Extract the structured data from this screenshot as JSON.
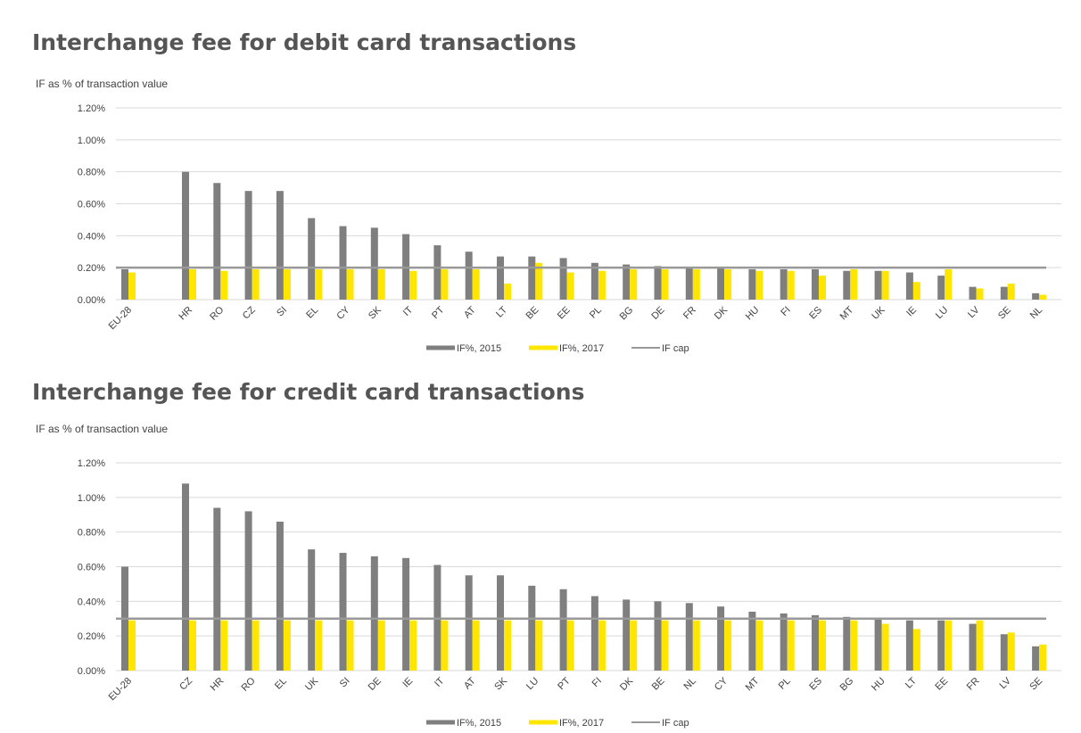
{
  "chart_data": [
    {
      "type": "bar",
      "title": "Interchange fee for debit card transactions",
      "ylabel": "IF as % of transaction value",
      "ylim": [
        0,
        1.2
      ],
      "yticks": [
        "0.00%",
        "0.20%",
        "0.40%",
        "0.60%",
        "0.80%",
        "1.00%",
        "1.20%"
      ],
      "categories": [
        "EU-28",
        "HR",
        "RO",
        "CZ",
        "SI",
        "EL",
        "CY",
        "SK",
        "IT",
        "PT",
        "AT",
        "LT",
        "BE",
        "EE",
        "PL",
        "BG",
        "DE",
        "FR",
        "DK",
        "HU",
        "FI",
        "ES",
        "MT",
        "UK",
        "IE",
        "LU",
        "LV",
        "SE",
        "NL"
      ],
      "series": [
        {
          "name": "IF%, 2015",
          "color": "#7f7f7f",
          "values": [
            0.19,
            0.8,
            0.73,
            0.68,
            0.68,
            0.51,
            0.46,
            0.45,
            0.41,
            0.34,
            0.3,
            0.27,
            0.27,
            0.26,
            0.23,
            0.22,
            0.21,
            0.2,
            0.2,
            0.19,
            0.19,
            0.19,
            0.18,
            0.18,
            0.17,
            0.15,
            0.08,
            0.08,
            0.04
          ]
        },
        {
          "name": "IF%, 2017",
          "color": "#ffe600",
          "values": [
            0.17,
            0.19,
            0.18,
            0.19,
            0.19,
            0.19,
            0.19,
            0.19,
            0.18,
            0.19,
            0.19,
            0.1,
            0.23,
            0.17,
            0.18,
            0.19,
            0.19,
            0.19,
            0.19,
            0.18,
            0.18,
            0.15,
            0.19,
            0.18,
            0.11,
            0.19,
            0.07,
            0.1,
            0.03
          ]
        }
      ],
      "cap": {
        "name": "IF cap",
        "value": 0.2,
        "color": "#999999"
      },
      "legend": "bottom"
    },
    {
      "type": "bar",
      "title": "Interchange fee for credit card transactions",
      "ylabel": "IF as % of transaction value",
      "ylim": [
        0,
        1.2
      ],
      "yticks": [
        "0.00%",
        "0.20%",
        "0.40%",
        "0.60%",
        "0.80%",
        "1.00%",
        "1.20%"
      ],
      "categories": [
        "EU-28",
        "CZ",
        "HR",
        "RO",
        "EL",
        "UK",
        "SI",
        "DE",
        "IE",
        "IT",
        "AT",
        "SK",
        "LU",
        "PT",
        "FI",
        "DK",
        "BE",
        "NL",
        "CY",
        "MT",
        "PL",
        "ES",
        "BG",
        "HU",
        "LT",
        "EE",
        "FR",
        "LV",
        "SE"
      ],
      "series": [
        {
          "name": "IF%, 2015",
          "color": "#7f7f7f",
          "values": [
            0.6,
            1.08,
            0.94,
            0.92,
            0.86,
            0.7,
            0.68,
            0.66,
            0.65,
            0.61,
            0.55,
            0.55,
            0.49,
            0.47,
            0.43,
            0.41,
            0.4,
            0.39,
            0.37,
            0.34,
            0.33,
            0.32,
            0.31,
            0.3,
            0.29,
            0.29,
            0.27,
            0.21,
            0.14
          ]
        },
        {
          "name": "IF%, 2017",
          "color": "#ffe600",
          "values": [
            0.29,
            0.29,
            0.29,
            0.29,
            0.29,
            0.29,
            0.29,
            0.29,
            0.29,
            0.29,
            0.29,
            0.29,
            0.29,
            0.29,
            0.29,
            0.29,
            0.29,
            0.29,
            0.29,
            0.29,
            0.29,
            0.29,
            0.29,
            0.27,
            0.24,
            0.29,
            0.29,
            0.22,
            0.15
          ]
        }
      ],
      "cap": {
        "name": "IF cap",
        "value": 0.3,
        "color": "#999999"
      },
      "legend": "bottom"
    }
  ]
}
